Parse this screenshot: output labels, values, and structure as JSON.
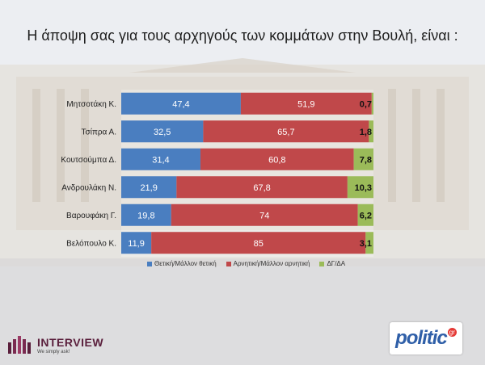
{
  "title": "Η άποψη σας για τους αρχηγούς των κομμάτων στην Βουλή,  είναι :",
  "colors": {
    "positive": "#4a7ec0",
    "negative": "#c0484a",
    "dk": "#9bbb59",
    "background": "#e9eaee"
  },
  "chart_data": {
    "type": "bar",
    "orientation": "horizontal",
    "stacked": true,
    "categories": [
      "Μητσοτάκη Κ.",
      "Τσίπρα Α.",
      "Κουτσούμπα Δ.",
      "Ανδρουλάκη Ν.",
      "Βαρουφάκη Γ.",
      "Βελόπουλο Κ."
    ],
    "series": [
      {
        "name": "Θετική/Μάλλον θετική",
        "color": "#4a7ec0",
        "values": [
          47.4,
          32.5,
          31.4,
          21.9,
          19.8,
          11.9
        ],
        "labels": [
          "47,4",
          "32,5",
          "31,4",
          "21,9",
          "19,8",
          "11,9"
        ]
      },
      {
        "name": "Αρνητική/Μάλλον αρνητική",
        "color": "#c0484a",
        "values": [
          51.9,
          65.7,
          60.8,
          67.8,
          74,
          85
        ],
        "labels": [
          "51,9",
          "65,7",
          "60,8",
          "67,8",
          "74",
          "85"
        ]
      },
      {
        "name": "ΔΓ/ΔΑ",
        "color": "#9bbb59",
        "values": [
          0.7,
          1.8,
          7.8,
          10.3,
          6.2,
          3.1
        ],
        "labels": [
          "0,7",
          "1,8",
          "7,8",
          "10,3",
          "6,2",
          "3,1"
        ]
      }
    ],
    "xlim": [
      0,
      100
    ],
    "legend_position": "bottom"
  },
  "logos": {
    "left_main": "INTERVIEW",
    "left_sub": "We simply ask!",
    "right_main": "politic",
    "right_sup": "gr"
  }
}
